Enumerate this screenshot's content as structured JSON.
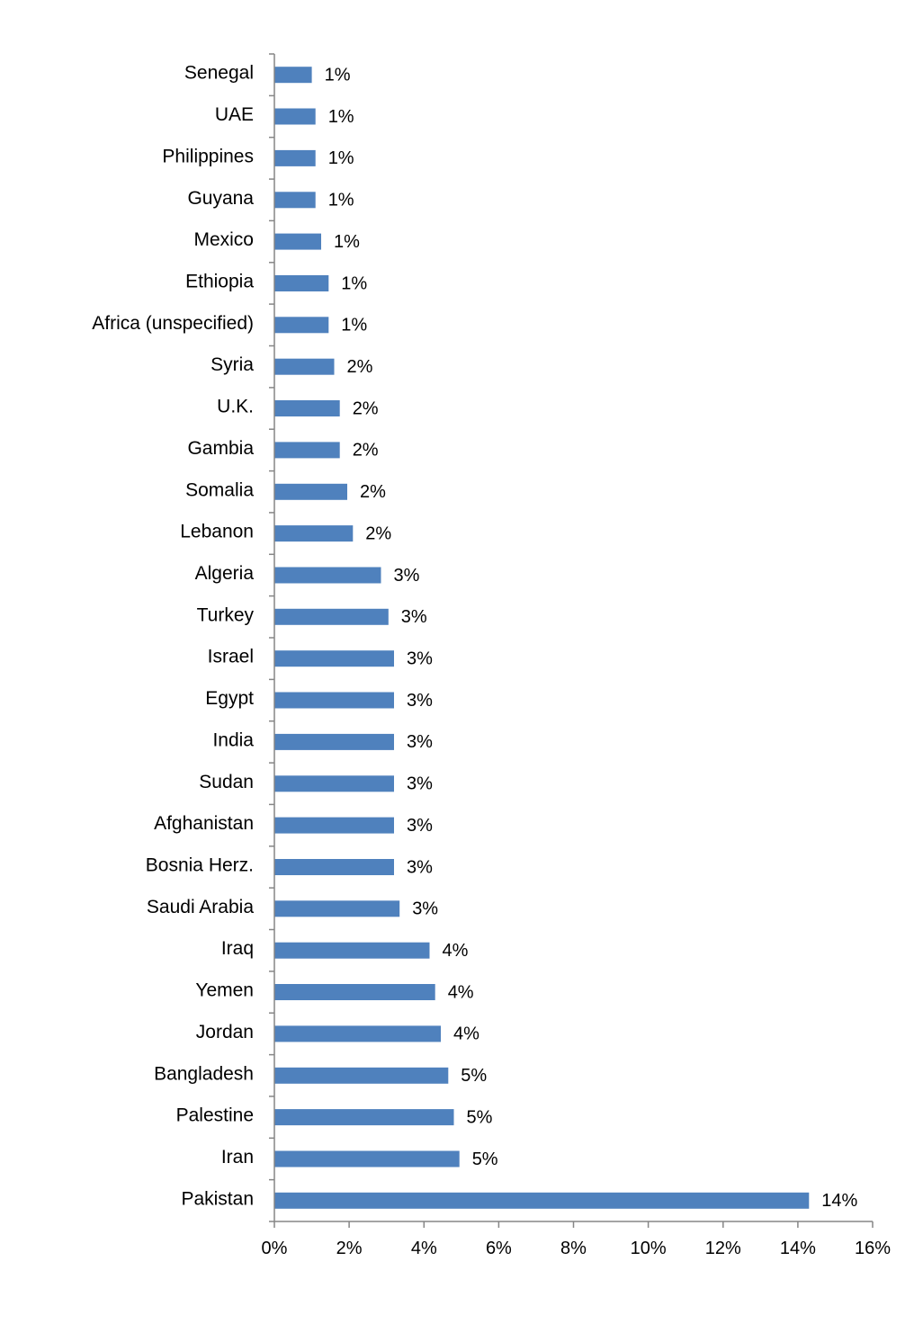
{
  "chart_data": {
    "type": "bar",
    "orientation": "horizontal",
    "categories": [
      "Senegal",
      "UAE",
      "Philippines",
      "Guyana",
      "Mexico",
      "Ethiopia",
      "Africa (unspecified)",
      "Syria",
      "U.K.",
      "Gambia",
      "Somalia",
      "Lebanon",
      "Algeria",
      "Turkey",
      "Israel",
      "Egypt",
      "India",
      "Sudan",
      "Afghanistan",
      "Bosnia Herz.",
      "Saudi Arabia",
      "Iraq",
      "Yemen",
      "Jordan",
      "Bangladesh",
      "Palestine",
      "Iran",
      "Pakistan"
    ],
    "values": [
      1.0,
      1.1,
      1.1,
      1.1,
      1.25,
      1.45,
      1.45,
      1.6,
      1.75,
      1.75,
      1.95,
      2.1,
      2.85,
      3.05,
      3.2,
      3.2,
      3.2,
      3.2,
      3.2,
      3.2,
      3.35,
      4.15,
      4.3,
      4.45,
      4.65,
      4.8,
      4.95,
      14.3
    ],
    "value_labels": [
      "1%",
      "1%",
      "1%",
      "1%",
      "1%",
      "1%",
      "1%",
      "2%",
      "2%",
      "2%",
      "2%",
      "2%",
      "3%",
      "3%",
      "3%",
      "3%",
      "3%",
      "3%",
      "3%",
      "3%",
      "3%",
      "4%",
      "4%",
      "4%",
      "5%",
      "5%",
      "5%",
      "14%"
    ],
    "x_ticks": [
      "0%",
      "2%",
      "4%",
      "6%",
      "8%",
      "10%",
      "12%",
      "14%",
      "16%"
    ],
    "xlim": [
      0,
      16
    ],
    "title": "",
    "xlabel": "",
    "ylabel": "",
    "grid": false,
    "legend": "none",
    "bar_color": "#4f81bd"
  }
}
